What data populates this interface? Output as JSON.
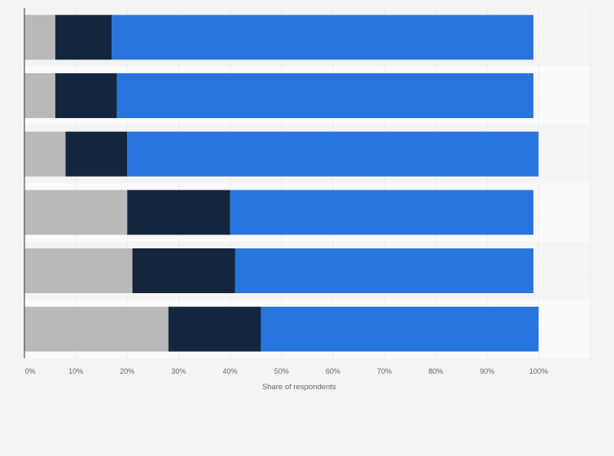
{
  "chart_data": {
    "type": "bar",
    "orientation": "horizontal",
    "stacked": true,
    "title": "",
    "xlabel": "Share of respondents",
    "ylabel": "",
    "xlim": [
      0,
      110
    ],
    "x_ticks": [
      "0%",
      "10%",
      "20%",
      "30%",
      "40%",
      "50%",
      "60%",
      "70%",
      "80%",
      "90%",
      "100%"
    ],
    "categories": [
      "",
      "",
      "",
      "",
      "",
      ""
    ],
    "series": [
      {
        "color": "#b9b9b9",
        "values": [
          6,
          6,
          8,
          20,
          21,
          28
        ]
      },
      {
        "color": "#13263d",
        "values": [
          11,
          12,
          12,
          20,
          20,
          18
        ]
      },
      {
        "color": "#2876dd",
        "values": [
          82,
          81,
          80,
          59,
          58,
          54
        ]
      }
    ],
    "grid": true,
    "legend": "none"
  },
  "colors": {
    "background": "#f4f4f4",
    "plot_band_light": "#fafafa",
    "plot_band_dark": "#f4f4f4",
    "gridline": "#dddddd",
    "axis": "#333333"
  }
}
